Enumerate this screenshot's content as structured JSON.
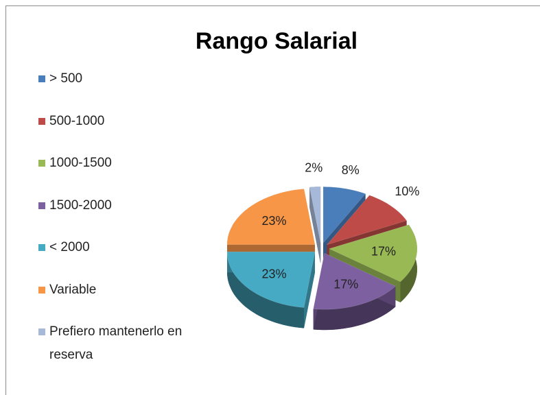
{
  "chart_data": {
    "type": "pie",
    "title": "Rango Salarial",
    "categories": [
      "> 500",
      "500-1000",
      "1000-1500",
      "1500-2000",
      "< 2000",
      "Variable",
      "Prefiero mantenerlo en reserva"
    ],
    "values": [
      8,
      10,
      17,
      17,
      23,
      23,
      2
    ],
    "value_labels": [
      "8%",
      "10%",
      "17%",
      "17%",
      "23%",
      "23%",
      "2%"
    ],
    "colors": [
      "#4a7ebb",
      "#be4b48",
      "#98b954",
      "#7d60a0",
      "#46aac5",
      "#f79646",
      "#a7b9d8"
    ],
    "legend": "left"
  }
}
